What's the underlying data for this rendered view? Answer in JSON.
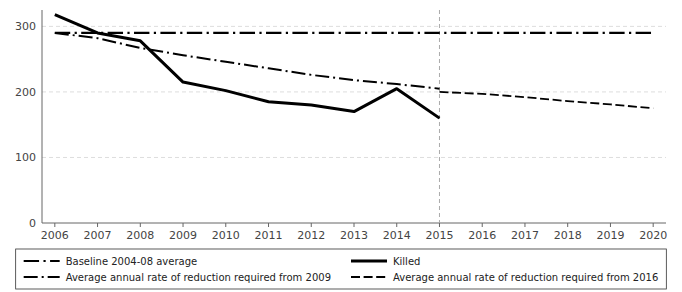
{
  "chart_data": {
    "type": "line",
    "xlim": [
      2005.7,
      2020.3
    ],
    "xticks": [
      2006,
      2007,
      2008,
      2009,
      2010,
      2011,
      2012,
      2013,
      2014,
      2015,
      2016,
      2017,
      2018,
      2019,
      2020
    ],
    "ylim": [
      0,
      325
    ],
    "yticks": [
      0,
      100,
      200,
      300
    ],
    "grid": true,
    "legend": "bottom",
    "vline_x": 2015,
    "series": [
      {
        "name": "Baseline 2004-08 average",
        "color": "#000000",
        "line_style": "dashdot",
        "x": [
          2006,
          2020
        ],
        "values": [
          290,
          290
        ]
      },
      {
        "name": "Killed",
        "color": "#000000",
        "line_style": "solid",
        "x": [
          2006,
          2007,
          2008,
          2009,
          2010,
          2011,
          2012,
          2013,
          2014,
          2015
        ],
        "values": [
          318,
          290,
          278,
          215,
          202,
          185,
          180,
          170,
          205,
          160
        ]
      },
      {
        "name": "Average annual rate of reduction required from 2009",
        "color": "#000000",
        "line_style": "dashdot",
        "x": [
          2006,
          2007,
          2008,
          2009,
          2010,
          2011,
          2012,
          2013,
          2014,
          2015
        ],
        "values": [
          290,
          282,
          267,
          256,
          246,
          236,
          226,
          218,
          212,
          205
        ]
      },
      {
        "name": "Average annual rate of reduction required from 2016",
        "color": "#000000",
        "line_style": "dashed",
        "x": [
          2015,
          2016,
          2017,
          2018,
          2019,
          2020
        ],
        "values": [
          200,
          197,
          192,
          186,
          181,
          175
        ]
      }
    ]
  }
}
